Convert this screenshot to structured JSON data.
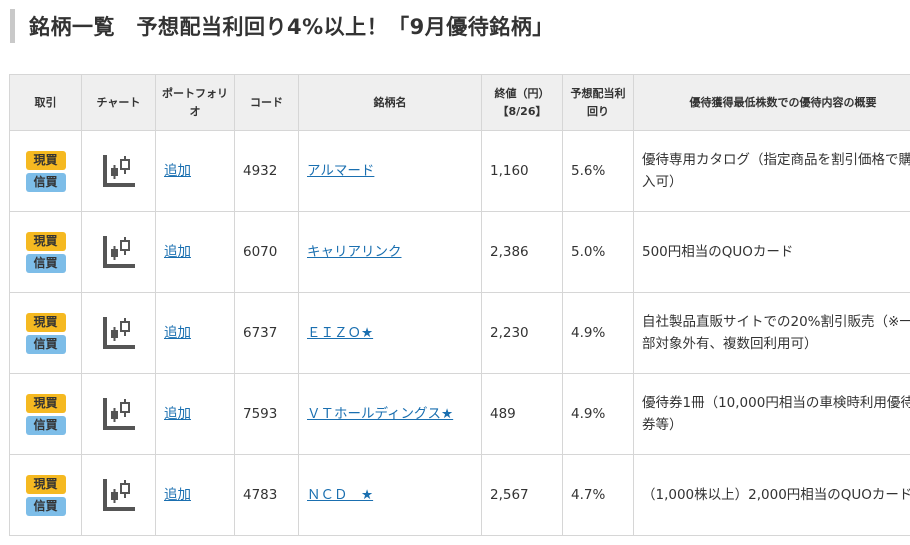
{
  "page": {
    "title": "銘柄一覧　予想配当利回り4%以上！「9月優待銘柄」"
  },
  "table": {
    "headers": {
      "trade": "取引",
      "chart": "チャート",
      "portfolio": "ポートフォリオ",
      "code": "コード",
      "name": "銘柄名",
      "close": "終値（円）【8/26】",
      "yield": "予想配当利回り",
      "benefit": "優待獲得最低株数での優待内容の概要"
    },
    "badge_genbutsu": "現買",
    "badge_shinyo": "信買",
    "add_label": "追加",
    "rows": [
      {
        "code": "4932",
        "name": "アルマード",
        "close": "1,160",
        "yield": "5.6%",
        "benefit": "優待専用カタログ（指定商品を割引価格で購入可）"
      },
      {
        "code": "6070",
        "name": "キャリアリンク",
        "close": "2,386",
        "yield": "5.0%",
        "benefit": "500円相当のQUOカード"
      },
      {
        "code": "6737",
        "name": "ＥＩＺＯ★",
        "close": "2,230",
        "yield": "4.9%",
        "benefit": "自社製品直販サイトでの20%割引販売（※一部対象外有、複数回利用可）"
      },
      {
        "code": "7593",
        "name": "ＶＴホールディングス★",
        "close": "489",
        "yield": "4.9%",
        "benefit": "優待券1冊（10,000円相当の車検時利用優待券等）"
      },
      {
        "code": "4783",
        "name": "ＮＣＤ　★",
        "close": "2,567",
        "yield": "4.7%",
        "benefit": "（1,000株以上）2,000円相当のQUOカード"
      }
    ]
  },
  "colors": {
    "genbutsu_badge": "#f5b921",
    "shinyo_badge": "#7dbde8",
    "link": "#1a6fb0"
  },
  "icons": {
    "chart": "candlestick-chart-icon"
  }
}
